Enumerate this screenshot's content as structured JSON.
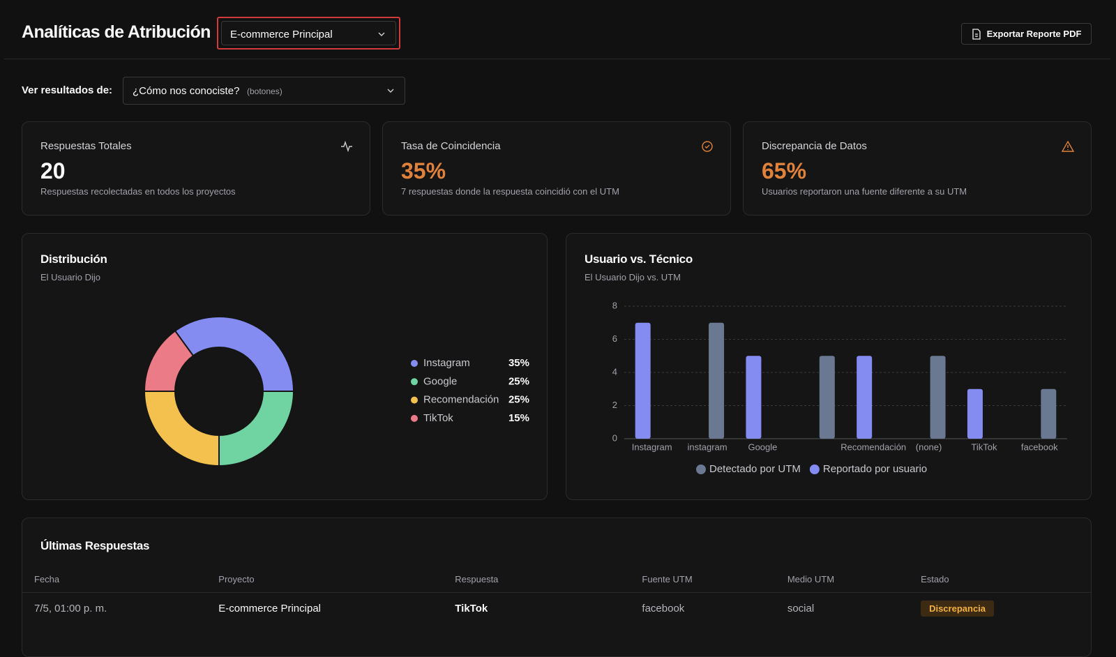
{
  "header": {
    "title": "Analíticas de Atribución",
    "project_select": "E-commerce Principal",
    "export_button": "Exportar Reporte PDF"
  },
  "filter": {
    "label": "Ver resultados de:",
    "question": "¿Cómo nos conociste?",
    "question_type": "(botones)"
  },
  "kpis": [
    {
      "title": "Respuestas Totales",
      "value": "20",
      "description": "Respuestas recolectadas en todos los proyectos"
    },
    {
      "title": "Tasa de Coincidencia",
      "value": "35%",
      "description": "7 respuestas donde la respuesta coincidió con el UTM"
    },
    {
      "title": "Discrepancia de Datos",
      "value": "65%",
      "description": "Usuarios reportaron una fuente diferente a su UTM"
    }
  ],
  "chart_data": [
    {
      "type": "pie",
      "title": "Distribución",
      "subtitle": "El Usuario Dijo",
      "categories": [
        "Instagram",
        "Google",
        "Recomendación",
        "TikTok"
      ],
      "values": [
        35,
        25,
        25,
        15
      ],
      "value_labels": [
        "35%",
        "25%",
        "25%",
        "15%"
      ],
      "colors": [
        "#848cf2",
        "#6fd3a2",
        "#f4c14e",
        "#ea7b87"
      ]
    },
    {
      "type": "bar",
      "title": "Usuario vs. Técnico",
      "subtitle": "El Usuario Dijo vs. UTM",
      "categories": [
        "Instagram",
        "instagram",
        "Google",
        null,
        "Recomendación",
        "(none)",
        "TikTok",
        "facebook"
      ],
      "series": [
        {
          "name": "Detectado por UTM",
          "color": "#6b7891",
          "values": [
            0,
            7,
            0,
            5,
            0,
            5,
            0,
            3
          ]
        },
        {
          "name": "Reportado por usuario",
          "color": "#848cf2",
          "values": [
            7,
            0,
            5,
            0,
            5,
            0,
            3,
            0
          ]
        }
      ],
      "ylim": [
        0,
        8
      ],
      "yticks": [
        0,
        2,
        4,
        6,
        8
      ],
      "grid": true,
      "legend": "bottom"
    }
  ],
  "table": {
    "title": "Últimas Respuestas",
    "columns": [
      "Fecha",
      "Proyecto",
      "Respuesta",
      "Fuente UTM",
      "Medio UTM",
      "Estado"
    ],
    "rows": [
      [
        "7/5, 01:00 p. m.",
        "E-commerce Principal",
        "TikTok",
        "facebook",
        "social",
        "Discrepancia"
      ]
    ]
  }
}
